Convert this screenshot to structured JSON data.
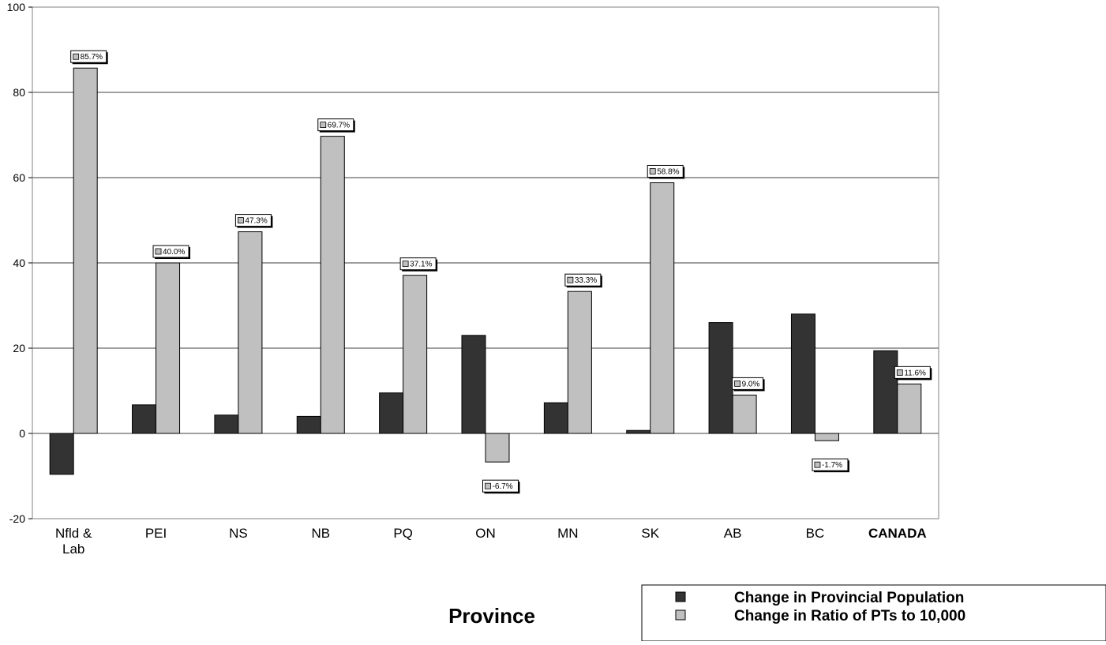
{
  "chart_data": {
    "type": "bar",
    "xlabel": "Province",
    "ylabel": "",
    "ylim": [
      -20,
      100
    ],
    "yticks": [
      -20,
      0,
      20,
      40,
      60,
      80,
      100
    ],
    "grid": true,
    "legend_position": "bottom-right",
    "categories": [
      "Nfld & Lab",
      "PEI",
      "NS",
      "NB",
      "PQ",
      "ON",
      "MN",
      "SK",
      "AB",
      "BC",
      "CANADA"
    ],
    "series": [
      {
        "name": "Change in Provincial Population",
        "color": "#333333",
        "values": [
          -9.6,
          6.7,
          4.3,
          4.0,
          9.5,
          23.0,
          7.2,
          0.7,
          26.0,
          28.0,
          19.4
        ]
      },
      {
        "name": "Change in Ratio of PTs to 10,000",
        "color": "#c0c0c0",
        "values": [
          85.7,
          40.0,
          47.3,
          69.7,
          37.1,
          -6.7,
          33.3,
          58.8,
          9.0,
          -1.7,
          11.6
        ],
        "data_labels": [
          "85.7%",
          "40.0%",
          "47.3%",
          "69.7%",
          "37.1%",
          "-6.7%",
          "33.3%",
          "58.8%",
          "9.0%",
          "-1.7%",
          "11.6%"
        ]
      }
    ]
  }
}
